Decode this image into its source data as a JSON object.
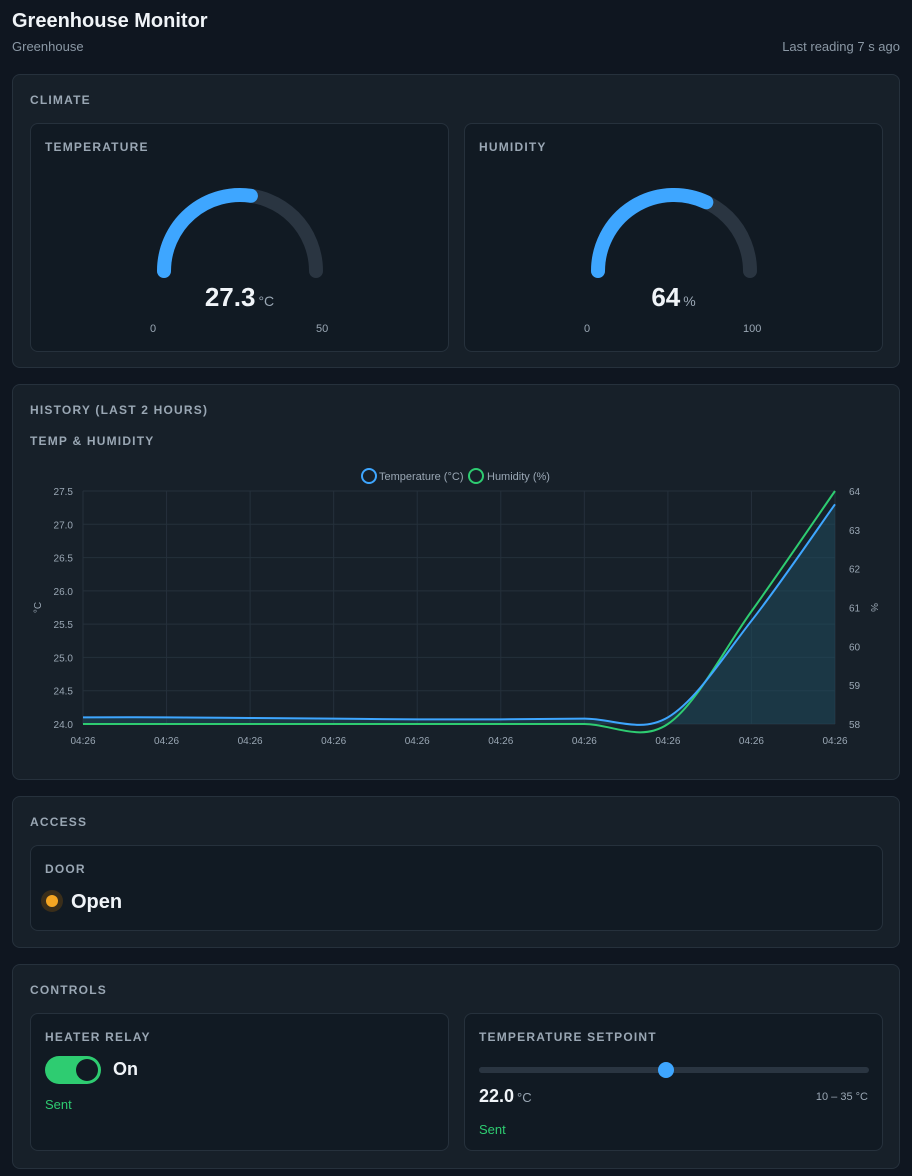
{
  "header": {
    "title": "Greenhouse Monitor",
    "subtitle": "Greenhouse",
    "last_reading": "Last reading 7 s ago"
  },
  "climate": {
    "section_title": "CLIMATE",
    "temperature": {
      "label": "TEMPERATURE",
      "value": "27.3",
      "unit": "°C",
      "min": "0",
      "max": "50",
      "fraction": 0.546,
      "color": "#3ea6ff"
    },
    "humidity": {
      "label": "HUMIDITY",
      "value": "64",
      "unit": "%",
      "min": "0",
      "max": "100",
      "fraction": 0.64,
      "color": "#3ea6ff"
    }
  },
  "history": {
    "section_title": "HISTORY (LAST 2 HOURS)",
    "chart_title": "TEMP & HUMIDITY"
  },
  "chart_data": {
    "type": "line",
    "x": [
      "04:26",
      "04:26",
      "04:26",
      "04:26",
      "04:26",
      "04:26",
      "04:26",
      "04:26",
      "04:26",
      "04:26"
    ],
    "series": [
      {
        "name": "Temperature (°C)",
        "axis": "left",
        "color": "#3ea6ff",
        "values": [
          24.1,
          24.1,
          24.09,
          24.08,
          24.07,
          24.07,
          24.08,
          24.1,
          25.55,
          27.3
        ]
      },
      {
        "name": "Humidity (%)",
        "axis": "right",
        "color": "#2ecc71",
        "values": [
          58,
          58,
          58,
          58,
          58,
          58,
          58,
          58,
          60.9,
          64
        ]
      }
    ],
    "ylabel": "°C",
    "y2label": "%",
    "ylim": [
      24.0,
      27.5
    ],
    "y2lim": [
      58,
      64
    ],
    "yticks": [
      "24.0",
      "24.5",
      "25.0",
      "25.5",
      "26.0",
      "26.5",
      "27.0",
      "27.5"
    ],
    "y2ticks": [
      "58",
      "59",
      "60",
      "61",
      "62",
      "63",
      "64"
    ],
    "legend": "top-center",
    "grid": true
  },
  "access": {
    "section_title": "ACCESS",
    "door_label": "DOOR",
    "door_state": "Open",
    "door_color": "#f5a623"
  },
  "controls": {
    "section_title": "CONTROLS",
    "heater": {
      "label": "HEATER RELAY",
      "state": "On",
      "status": "Sent",
      "on": true
    },
    "setpoint": {
      "label": "TEMPERATURE SETPOINT",
      "value": "22.0",
      "unit": "°C",
      "range": "10 – 35 °C",
      "status": "Sent",
      "fraction": 0.48
    }
  }
}
